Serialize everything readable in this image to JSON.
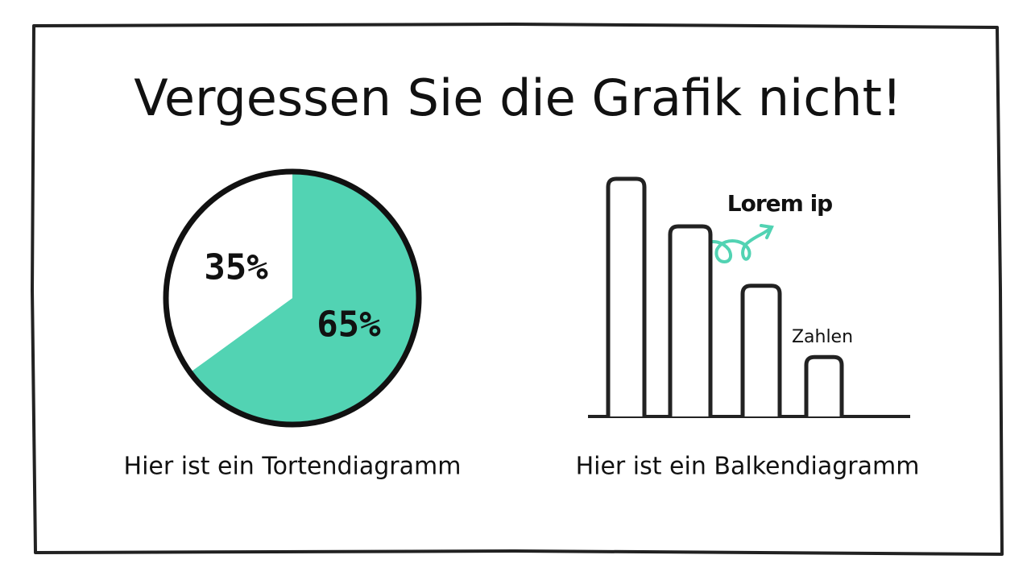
{
  "title": "Vergessen Sie die Grafik nicht!",
  "chart_data": [
    {
      "type": "pie",
      "caption": "Hier ist ein Tortendiagramm",
      "values": [
        65,
        35
      ],
      "value_labels": [
        "65%",
        "35%"
      ],
      "colors": [
        "#52d3b3",
        "#ffffff"
      ]
    },
    {
      "type": "bar",
      "caption": "Hier ist ein Balkendiagramm",
      "annotations": [
        "Lorem ip",
        "Zahlen"
      ],
      "categories": [
        null,
        null,
        null,
        null
      ],
      "values": [
        100,
        80,
        55,
        25
      ],
      "ylim": [
        0,
        100
      ],
      "color": "#ffffff"
    }
  ]
}
